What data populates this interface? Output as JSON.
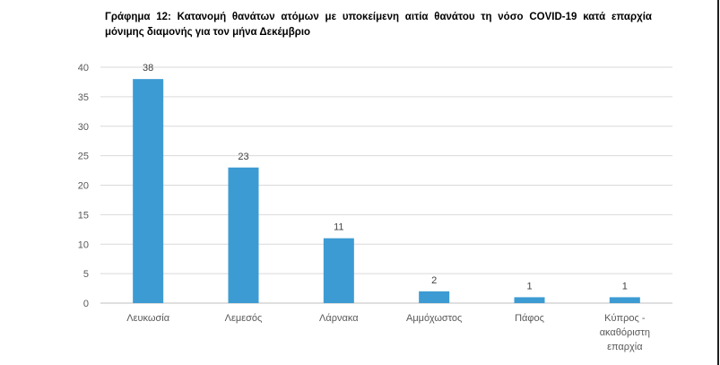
{
  "chart_data": {
    "type": "bar",
    "title": "Γράφημα 12: Κατανομή θανάτων ατόμων με υποκείμενη αιτία θανάτου τη νόσο COVID-19 κατά επαρχία μόνιμης διαμονής για τον μήνα Δεκέμβριο",
    "categories": [
      [
        "Λευκωσία"
      ],
      [
        "Λεμεσός"
      ],
      [
        "Λάρνακα"
      ],
      [
        "Αμμόχωστος"
      ],
      [
        "Πάφος"
      ],
      [
        "Κύπρος -",
        "ακαθόριστη",
        "επαρχία"
      ]
    ],
    "values": [
      38,
      23,
      11,
      2,
      1,
      1
    ],
    "data_labels": [
      "38",
      "23",
      "11",
      "2",
      "1",
      "1"
    ],
    "ylim": [
      0,
      40
    ],
    "yticks": [
      0,
      5,
      10,
      15,
      20,
      25,
      30,
      35,
      40
    ],
    "grid": true,
    "bar_color": "#3d9bd3",
    "grid_color": "#d9d9d9",
    "tick_label_color": "#595959",
    "data_label_color": "#404040"
  }
}
